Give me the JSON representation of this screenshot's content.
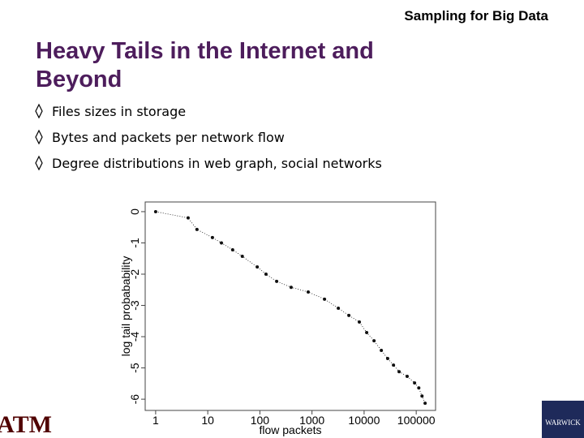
{
  "header": "Sampling for Big Data",
  "title": [
    "Heavy Tails in the Internet and",
    "Beyond"
  ],
  "bullets": [
    "Files sizes in storage",
    "Bytes and packets per network flow",
    "Degree distributions in web graph, social networks"
  ],
  "logos": {
    "left": "ATM",
    "right": "WARWICK"
  },
  "chart_data": {
    "type": "scatter",
    "x_label": "flow packets",
    "y_label": "log tail probabability",
    "x": [
      1,
      4.2,
      6.2,
      12.3,
      18.3,
      30,
      46,
      89,
      131,
      210,
      398,
      846,
      1740,
      3200,
      5100,
      8100,
      11200,
      15500,
      21400,
      28300,
      36600,
      46900,
      67000,
      93000,
      112000,
      129000,
      148000
    ],
    "values": [
      0.0,
      -0.2,
      -0.57,
      -0.83,
      -1.0,
      -1.22,
      -1.43,
      -1.77,
      -2.0,
      -2.23,
      -2.42,
      -2.57,
      -2.8,
      -3.09,
      -3.32,
      -3.53,
      -3.87,
      -4.13,
      -4.44,
      -4.7,
      -4.91,
      -5.12,
      -5.27,
      -5.48,
      -5.64,
      -5.9,
      -6.13
    ],
    "color": "#111111",
    "connect": true,
    "xlim": [
      0.63,
      235000
    ],
    "xlog": true,
    "xticks": [
      1,
      10,
      100,
      1000,
      10000,
      100000
    ],
    "ylim": [
      -6.36,
      0.31
    ],
    "yticks": [
      0,
      -1,
      -2,
      -3,
      -4,
      -5,
      -6
    ]
  }
}
